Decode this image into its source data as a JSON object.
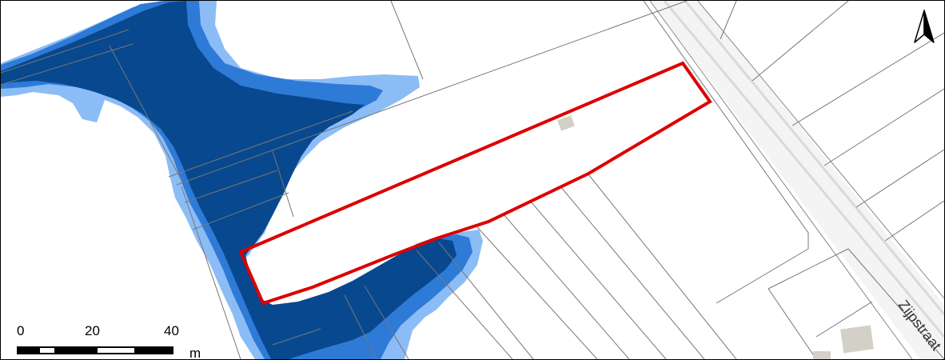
{
  "map": {
    "colors": {
      "background": "#ffffff",
      "flood_deep": "#08488e",
      "flood_mid": "#2e7ad7",
      "flood_shallow": "#8bbcf5",
      "parcel_line": "#777777",
      "road": "#d9d9d9",
      "building": "#d3d0c7",
      "highlight_outline": "#dd0000"
    },
    "north_arrow": {
      "icon": "north-arrow-icon"
    },
    "scale_bar": {
      "ticks": [
        "0",
        "20",
        "40"
      ],
      "unit": "m"
    },
    "street_label": "Zijpstraat"
  }
}
